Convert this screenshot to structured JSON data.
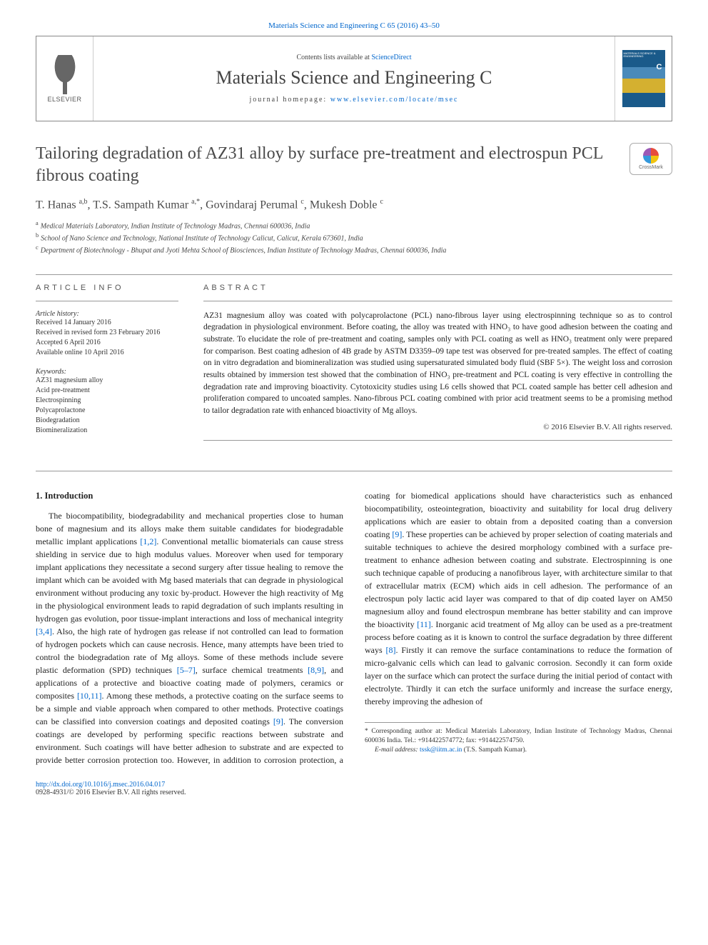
{
  "topCitation": "Materials Science and Engineering C 65 (2016) 43–50",
  "header": {
    "publisherName": "ELSEVIER",
    "contentsPrefix": "Contents lists available at ",
    "contentsLink": "ScienceDirect",
    "journalName": "Materials Science and Engineering C",
    "homepagePrefix": "journal homepage: ",
    "homepageLink": "www.elsevier.com/locate/msec"
  },
  "crossmarkLabel": "CrossMark",
  "title": "Tailoring degradation of AZ31 alloy by surface pre-treatment and electrospun PCL fibrous coating",
  "authorsHtml": "T. Hanas <sup>a,b</sup>, T.S. Sampath Kumar <sup>a,*</sup>, Govindaraj Perumal <sup>c</sup>, Mukesh Doble <sup>c</sup>",
  "affiliations": [
    {
      "sup": "a",
      "text": "Medical Materials Laboratory, Indian Institute of Technology Madras, Chennai 600036, India"
    },
    {
      "sup": "b",
      "text": "School of Nano Science and Technology, National Institute of Technology Calicut, Calicut, Kerala 673601, India"
    },
    {
      "sup": "c",
      "text": "Department of Biotechnology - Bhupat and Jyoti Mehta School of Biosciences, Indian Institute of Technology Madras, Chennai 600036, India"
    }
  ],
  "articleInfo": {
    "heading": "ARTICLE INFO",
    "historyLabel": "Article history:",
    "history": [
      "Received 14 January 2016",
      "Received in revised form 23 February 2016",
      "Accepted 6 April 2016",
      "Available online 10 April 2016"
    ],
    "keywordsLabel": "Keywords:",
    "keywords": [
      "AZ31 magnesium alloy",
      "Acid pre-treatment",
      "Electrospinning",
      "Polycaprolactone",
      "Biodegradation",
      "Biomineralization"
    ]
  },
  "abstract": {
    "heading": "ABSTRACT",
    "text": "AZ31 magnesium alloy was coated with polycaprolactone (PCL) nano-fibrous layer using electrospinning technique so as to control degradation in physiological environment. Before coating, the alloy was treated with HNO₃ to have good adhesion between the coating and substrate. To elucidate the role of pre-treatment and coating, samples only with PCL coating as well as HNO₃ treatment only were prepared for comparison. Best coating adhesion of 4B grade by ASTM D3359–09 tape test was observed for pre-treated samples. The effect of coating on in vitro degradation and biomineralization was studied using supersaturated simulated body fluid (SBF 5×). The weight loss and corrosion results obtained by immersion test showed that the combination of HNO₃ pre-treatment and PCL coating is very effective in controlling the degradation rate and improving bioactivity. Cytotoxicity studies using L6 cells showed that PCL coated sample has better cell adhesion and proliferation compared to uncoated samples. Nano-fibrous PCL coating combined with prior acid treatment seems to be a promising method to tailor degradation rate with enhanced bioactivity of Mg alloys.",
    "copyright": "© 2016 Elsevier B.V. All rights reserved."
  },
  "intro": {
    "heading": "1. Introduction",
    "para1a": "The biocompatibility, biodegradability and mechanical properties close to human bone of magnesium and its alloys make them suitable candidates for biodegradable metallic implant applications ",
    "ref1": "[1,2]",
    "para1b": ". Conventional metallic biomaterials can cause stress shielding in service due to high modulus values. Moreover when used for temporary implant applications they necessitate a second surgery after tissue healing to remove the implant which can be avoided with Mg based materials that can degrade in physiological environment without producing any toxic by-product. However the high reactivity of Mg in the physiological environment leads to rapid degradation of such implants resulting in hydrogen gas evolution, poor tissue-implant interactions and loss of mechanical integrity ",
    "ref2": "[3,4]",
    "para1c": ". Also, the high rate of hydrogen gas release if not controlled can lead to formation of hydrogen pockets which can cause necrosis. Hence, many attempts have been tried to control the biodegradation rate of Mg alloys. Some of these methods include severe plastic deformation (SPD) techniques ",
    "ref3": "[5–7]",
    "para1d": ", surface chemical treatments ",
    "ref4": "[8,9]",
    "para1e": ", and applications of a protective and bioactive coating made of polymers, ceramics or composites ",
    "ref5": "[10,11]",
    "para1f": ". Among these methods, a protective coating on the surface seems to be a simple and viable approach when compared to other methods. Protective coatings can be classified into conversion coatings and deposited coatings ",
    "ref6": "[9]",
    "para1g": ". The conversion coatings are developed by performing specific reactions between substrate and environment. Such coatings will have better adhesion to substrate and are expected to provide better corrosion protection too. However, in addition to corrosion protection, a coating for biomedical applications should have characteristics such as enhanced biocompatibility, osteointegration, bioactivity and suitability for local drug delivery applications which are easier to obtain from a deposited coating than a conversion coating ",
    "ref7": "[9]",
    "para1h": ". These properties can be achieved by proper selection of coating materials and suitable techniques to achieve the desired morphology combined with a surface pre-treatment to enhance adhesion between coating and substrate. Electrospinning is one such technique capable of producing a nanofibrous layer, with architecture similar to that of extracellular matrix (ECM) which aids in cell adhesion. The performance of an electrospun poly lactic acid layer was compared to that of dip coated layer on AM50 magnesium alloy and found electrospun membrane has better stability and can improve the bioactivity ",
    "ref8": "[11]",
    "para1i": ". Inorganic acid treatment of Mg alloy can be used as a pre-treatment process before coating as it is known to control the surface degradation by three different ways ",
    "ref9": "[8]",
    "para1j": ". Firstly it can remove the surface contaminations to reduce the formation of micro-galvanic cells which can lead to galvanic corrosion. Secondly it can form oxide layer on the surface which can protect the surface during the initial period of contact with electrolyte. Thirdly it can etch the surface uniformly and increase the surface energy, thereby improving the adhesion of"
  },
  "footnote": {
    "corrLabel": "* ",
    "corrText": "Corresponding author at: Medical Materials Laboratory, Indian Institute of Technology Madras, Chennai 600036 India. Tel.: +914422574772; fax: +914422574750.",
    "emailLabel": "E-mail address: ",
    "email": "tssk@iitm.ac.in",
    "emailSuffix": " (T.S. Sampath Kumar)."
  },
  "footer": {
    "doi": "http://dx.doi.org/10.1016/j.msec.2016.04.017",
    "issn": "0928-4931/© 2016 Elsevier B.V. All rights reserved."
  }
}
